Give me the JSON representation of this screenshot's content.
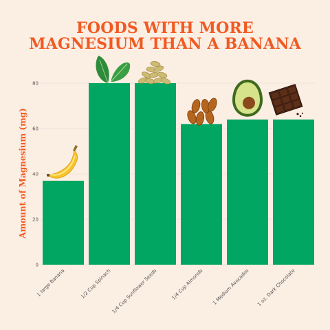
{
  "chart_data": {
    "type": "bar",
    "title_lines": [
      "FOODS WITH MORE",
      "MAGNESIUM THAN A BANANA"
    ],
    "ylabel": "Amount of Magnesium (mg)",
    "xlabel": "",
    "categories": [
      "1 large Banana",
      "1/2 Cup Spinach",
      "1/4 Cup Sunflower Seeds",
      "1/4 Cup Almonds",
      "1 Medium Avocados",
      "1 oz. Dark Chocolate"
    ],
    "values": [
      37,
      80,
      80,
      62,
      64,
      64
    ],
    "yticks": [
      0,
      20,
      40,
      60,
      80
    ],
    "ylim": [
      0,
      85
    ],
    "grid": true,
    "bar_color": "#00a661",
    "icons": [
      "banana-icon",
      "spinach-icon",
      "sunflower-seeds-icon",
      "almonds-icon",
      "avocado-icon",
      "dark-chocolate-icon"
    ]
  },
  "colors": {
    "background": "#fbeee3",
    "accent": "#f15a22",
    "grid": "#efe3d8"
  }
}
